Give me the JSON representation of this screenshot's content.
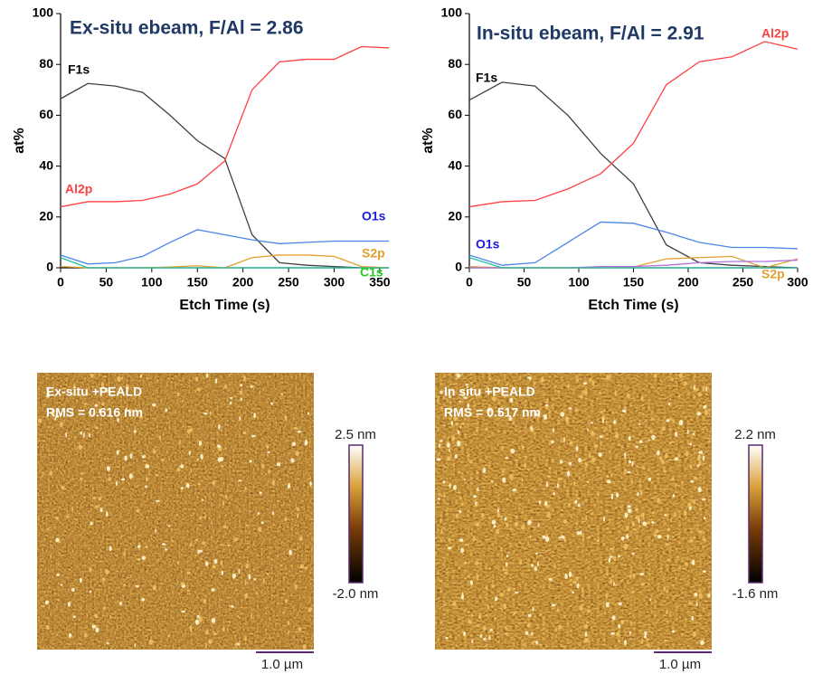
{
  "chart_data": [
    {
      "type": "line",
      "title": "Ex-situ ebeam, F/Al = 2.86",
      "x_label": "Etch Time (s)",
      "y_label": "at%",
      "x": [
        0,
        30,
        60,
        90,
        120,
        150,
        180,
        210,
        240,
        270,
        300,
        330,
        360
      ],
      "xlim": [
        0,
        360
      ],
      "xticks": [
        0,
        50,
        100,
        150,
        200,
        250,
        300,
        350
      ],
      "ylim": [
        0,
        100
      ],
      "yticks": [
        0,
        20,
        40,
        60,
        80,
        100
      ],
      "series": [
        {
          "name": "F1s",
          "color": "#404040",
          "values": [
            66.5,
            72.5,
            71.5,
            69,
            60,
            50,
            43,
            13,
            2,
            1,
            0.5,
            0,
            0
          ]
        },
        {
          "name": "Al2p",
          "color": "#ff4040",
          "values": [
            24,
            26,
            26,
            26.5,
            29,
            33,
            42,
            70,
            81,
            82,
            82,
            87,
            86.5
          ]
        },
        {
          "name": "O1s",
          "color": "#4a86e8",
          "values": [
            5,
            1.5,
            2,
            4.5,
            10,
            15,
            13,
            11,
            9.5,
            10,
            10.5,
            10.5,
            10.5
          ]
        },
        {
          "name": "S2p",
          "color": "#e0a030",
          "values": [
            0.5,
            0,
            0,
            0,
            0.3,
            0.8,
            0,
            4,
            5,
            5,
            4.5,
            0.5,
            0
          ]
        },
        {
          "name": "C1s",
          "color": "#20c0a0",
          "values": [
            4,
            0,
            0,
            0,
            0,
            0,
            0,
            0,
            0,
            0,
            0,
            0,
            0
          ]
        }
      ]
    },
    {
      "type": "line",
      "title": "In-situ ebeam, F/Al = 2.91",
      "x_label": "Etch Time (s)",
      "y_label": "at%",
      "x": [
        0,
        30,
        60,
        90,
        120,
        150,
        180,
        210,
        240,
        270,
        300
      ],
      "xlim": [
        0,
        300
      ],
      "xticks": [
        0,
        50,
        100,
        150,
        200,
        250,
        300
      ],
      "ylim": [
        0,
        100
      ],
      "yticks": [
        0,
        20,
        40,
        60,
        80,
        100
      ],
      "series": [
        {
          "name": "F1s",
          "color": "#404040",
          "values": [
            66,
            73,
            71.5,
            60,
            45,
            33,
            9,
            2,
            1,
            0.5,
            0
          ]
        },
        {
          "name": "Al2p",
          "color": "#ff4040",
          "values": [
            24,
            26,
            26.5,
            31,
            37,
            49,
            72,
            81,
            83,
            89,
            86
          ]
        },
        {
          "name": "O1s",
          "color": "#4a86e8",
          "values": [
            5,
            1,
            2,
            10,
            18,
            17.5,
            14,
            10,
            8,
            8,
            7.5
          ]
        },
        {
          "name": "S2p",
          "color": "#e0a030",
          "values": [
            0.5,
            0,
            0,
            0,
            0,
            0.3,
            3.5,
            4,
            4.5,
            0,
            3.5
          ]
        },
        {
          "color": "#b070e0",
          "values": [
            0,
            0,
            0,
            0,
            0.5,
            0.5,
            1,
            2,
            2.5,
            2.5,
            3
          ]
        },
        {
          "color": "#20c0a0",
          "values": [
            4,
            0,
            0,
            0,
            0,
            0,
            0,
            0,
            0,
            0,
            0
          ]
        }
      ]
    }
  ],
  "afm_images": [
    {
      "caption": "Ex-situ +PEALD",
      "rms": "RMS = 0.616 nm",
      "scale_max": "2.5 nm",
      "scale_min": "-2.0 nm",
      "scale_bar": "1.0 µm"
    },
    {
      "caption": "In situ +PEALD",
      "rms": "RMS = 0.517 nm",
      "scale_max": "2.2 nm",
      "scale_min": "-1.6 nm",
      "scale_bar": "1.0 µm"
    }
  ]
}
